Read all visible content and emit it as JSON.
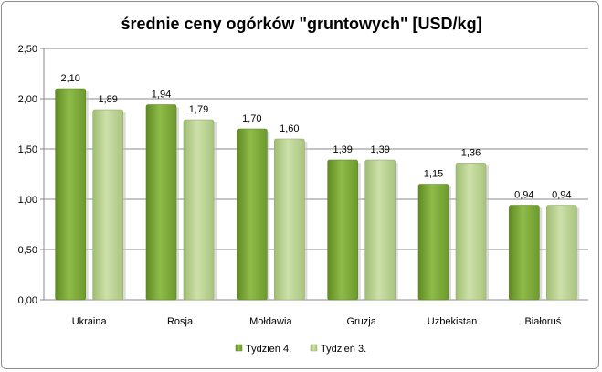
{
  "chart_data": {
    "type": "bar",
    "title": "średnie ceny ogórków \"gruntowych\" [USD/kg]",
    "xlabel": "",
    "ylabel": "",
    "ylim": [
      0,
      2.5
    ],
    "ytick_step": 0.5,
    "ytick_labels": [
      "0,00",
      "0,50",
      "1,00",
      "1,50",
      "2,00",
      "2,50"
    ],
    "grid": true,
    "legend_position": "bottom",
    "categories": [
      "Ukraina",
      "Rosja",
      "Mołdawia",
      "Gruzja",
      "Uzbekistan",
      "Białoruś"
    ],
    "series": [
      {
        "name": "Tydzień 4.",
        "color": "#7ea83c",
        "values": [
          2.1,
          1.94,
          1.7,
          1.39,
          1.15,
          0.94
        ],
        "labels": [
          "2,10",
          "1,94",
          "1,70",
          "1,39",
          "1,15",
          "0,94"
        ]
      },
      {
        "name": "Tydzień 3.",
        "color": "#b5cc8e",
        "values": [
          1.89,
          1.79,
          1.6,
          1.39,
          1.36,
          0.94
        ],
        "labels": [
          "1,89",
          "1,79",
          "1,60",
          "1,39",
          "1,36",
          "0,94"
        ]
      }
    ]
  }
}
